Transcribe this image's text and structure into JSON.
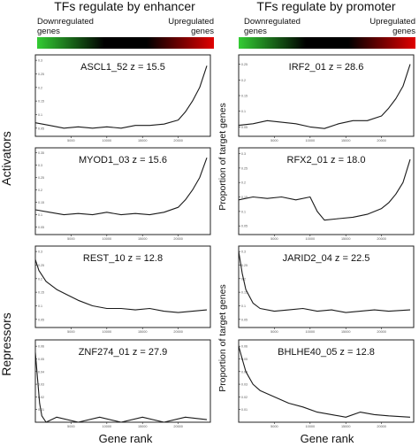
{
  "columns": [
    {
      "title": "TFs regulate by enhancer",
      "down_label": "Downregulated genes",
      "up_label": "Upregulated genes",
      "xlabel": "Gene rank"
    },
    {
      "title": "TFs regulate by promoter",
      "down_label": "Downregulated genes",
      "up_label": "Upregulated genes",
      "xlabel": "Gene rank"
    }
  ],
  "groups": {
    "activators": "Activators",
    "repressors": "Repressors"
  },
  "ylabel": "Proportion of target genes",
  "colors": {
    "down": "#33cc33",
    "middle": "#000000",
    "up": "#e00000",
    "line": "#1a1a1a"
  },
  "chart_data": [
    {
      "type": "line",
      "title": "ASCL1_52 z = 15.5",
      "x_ticks": [
        "5000",
        "10000",
        "15000",
        "20000"
      ],
      "y_ticks": [
        "0.05",
        "0.1",
        "0.15",
        "0.2",
        "0.25",
        "0.3"
      ],
      "ylim": [
        0.02,
        0.32
      ],
      "x": [
        0,
        2000,
        4000,
        6000,
        8000,
        10000,
        12000,
        14000,
        16000,
        18000,
        20000,
        21000,
        22000,
        23000,
        24000
      ],
      "values": [
        0.07,
        0.06,
        0.05,
        0.055,
        0.05,
        0.055,
        0.05,
        0.06,
        0.06,
        0.065,
        0.08,
        0.11,
        0.15,
        0.2,
        0.28
      ]
    },
    {
      "type": "line",
      "title": "IRF2_01 z = 28.6",
      "x_ticks": [
        "5000",
        "10000",
        "15000",
        "20000"
      ],
      "y_ticks": [
        "0.05",
        "0.1",
        "0.15",
        "0.2",
        "0.25"
      ],
      "ylim": [
        0.02,
        0.28
      ],
      "x": [
        0,
        2000,
        4000,
        6000,
        8000,
        10000,
        12000,
        14000,
        16000,
        18000,
        20000,
        21000,
        22000,
        23000,
        24000
      ],
      "values": [
        0.055,
        0.06,
        0.07,
        0.065,
        0.06,
        0.05,
        0.045,
        0.06,
        0.07,
        0.07,
        0.085,
        0.11,
        0.14,
        0.18,
        0.25
      ]
    },
    {
      "type": "line",
      "title": "MYOD1_03 z = 15.6",
      "x_ticks": [
        "5000",
        "10000",
        "15000",
        "20000"
      ],
      "y_ticks": [
        "0.05",
        "0.1",
        "0.15",
        "0.2",
        "0.25",
        "0.3",
        "0.35"
      ],
      "ylim": [
        0.02,
        0.37
      ],
      "x": [
        0,
        2000,
        4000,
        6000,
        8000,
        10000,
        12000,
        14000,
        16000,
        18000,
        20000,
        21000,
        22000,
        23000,
        24000
      ],
      "values": [
        0.12,
        0.11,
        0.1,
        0.105,
        0.1,
        0.11,
        0.1,
        0.105,
        0.1,
        0.11,
        0.13,
        0.16,
        0.2,
        0.25,
        0.33
      ]
    },
    {
      "type": "line",
      "title": "RFX2_01 z = 18.0",
      "x_ticks": [
        "5000",
        "10000",
        "15000",
        "20000"
      ],
      "y_ticks": [
        "0.05",
        "0.1",
        "0.15",
        "0.2",
        "0.25",
        "0.3"
      ],
      "ylim": [
        0.02,
        0.32
      ],
      "x": [
        0,
        2000,
        4000,
        6000,
        8000,
        10000,
        11000,
        12000,
        14000,
        16000,
        18000,
        20000,
        21000,
        22000,
        23000,
        24000
      ],
      "values": [
        0.14,
        0.15,
        0.145,
        0.15,
        0.14,
        0.15,
        0.1,
        0.07,
        0.075,
        0.08,
        0.09,
        0.11,
        0.13,
        0.16,
        0.2,
        0.28
      ]
    },
    {
      "type": "line",
      "title": "REST_10 z = 12.8",
      "x_ticks": [
        "5000",
        "10000",
        "15000",
        "20000"
      ],
      "y_ticks": [
        "0.05",
        "0.1",
        "0.15",
        "0.2",
        "0.25",
        "0.3"
      ],
      "ylim": [
        0.02,
        0.32
      ],
      "x": [
        0,
        500,
        1500,
        3000,
        4500,
        6000,
        8000,
        10000,
        12000,
        14000,
        16000,
        18000,
        20000,
        22000,
        24000
      ],
      "values": [
        0.27,
        0.23,
        0.19,
        0.16,
        0.14,
        0.12,
        0.1,
        0.09,
        0.09,
        0.085,
        0.09,
        0.08,
        0.075,
        0.08,
        0.085
      ]
    },
    {
      "type": "line",
      "title": "JARID2_04 z = 22.5",
      "x_ticks": [
        "5000",
        "10000",
        "15000",
        "20000"
      ],
      "y_ticks": [
        "0.05",
        "0.1",
        "0.15",
        "0.2",
        "0.25",
        "0.3"
      ],
      "ylim": [
        0.02,
        0.32
      ],
      "x": [
        0,
        500,
        1000,
        2000,
        3000,
        5000,
        7000,
        9000,
        11000,
        13000,
        15000,
        17000,
        19000,
        21000,
        24000
      ],
      "values": [
        0.3,
        0.22,
        0.16,
        0.11,
        0.09,
        0.08,
        0.085,
        0.09,
        0.08,
        0.085,
        0.075,
        0.08,
        0.085,
        0.08,
        0.085
      ]
    },
    {
      "type": "line",
      "title": "ZNF274_01 z = 27.9",
      "x_ticks": [
        "5000",
        "10000",
        "15000",
        "20000"
      ],
      "y_ticks": [
        "0.01",
        "0.02",
        "0.03",
        "0.04",
        "0.05",
        "0.06"
      ],
      "ylim": [
        0,
        0.065
      ],
      "x": [
        0,
        300,
        600,
        900,
        1500,
        3000,
        6000,
        9000,
        12000,
        15000,
        18000,
        21000,
        24000
      ],
      "values": [
        0.055,
        0.035,
        0.015,
        0.005,
        0.0,
        0.004,
        0.0,
        0.004,
        0.0,
        0.004,
        0.0,
        0.004,
        0.002
      ]
    },
    {
      "type": "line",
      "title": "BHLHE40_05 z = 12.8",
      "x_ticks": [
        "5000",
        "10000",
        "15000",
        "20000"
      ],
      "y_ticks": [
        "0.01",
        "0.02",
        "0.03",
        "0.04",
        "0.05",
        "0.06"
      ],
      "ylim": [
        0,
        0.065
      ],
      "x": [
        0,
        500,
        1000,
        2000,
        3000,
        5000,
        7000,
        9000,
        11000,
        13000,
        15000,
        17000,
        19000,
        21000,
        24000
      ],
      "values": [
        0.06,
        0.05,
        0.04,
        0.03,
        0.025,
        0.02,
        0.015,
        0.012,
        0.008,
        0.006,
        0.004,
        0.008,
        0.006,
        0.005,
        0.004
      ]
    }
  ]
}
